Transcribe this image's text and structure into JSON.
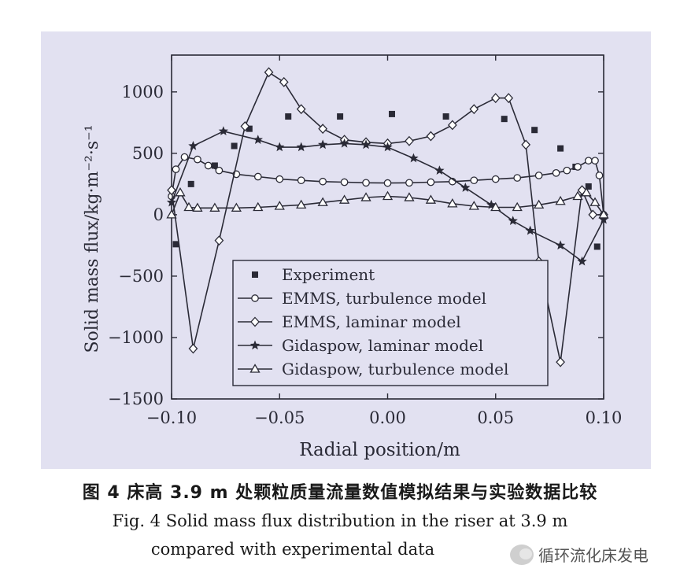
{
  "caption": {
    "cn": "图 4  床高 3.9 m 处颗粒质量流量数值模拟结果与实验数据比较",
    "en_line1": "Fig. 4  Solid mass flux distribution in the riser at 3.9 m",
    "en_line2": "compared with experimental data"
  },
  "watermark": {
    "text": "循环流化床发电",
    "icon": "wechat-icon"
  },
  "chart_data": {
    "type": "line",
    "title": "",
    "xlabel": "Radial position/m",
    "ylabel": "Solid mass flux/kg·m⁻²·s⁻¹",
    "xlim": [
      -0.1,
      0.1
    ],
    "ylim": [
      -1500,
      1300
    ],
    "xticks": [
      -0.1,
      -0.05,
      0.0,
      0.05,
      0.1
    ],
    "xtick_labels": [
      "−0.10",
      "−0.05",
      "0.00",
      "0.05",
      "0.10"
    ],
    "yticks": [
      -1500,
      -1000,
      -500,
      0,
      500,
      1000
    ],
    "ytick_labels": [
      "−1500",
      "−1000",
      "−500",
      "0",
      "500",
      "1000"
    ],
    "grid": false,
    "legend_position": "bottom-center",
    "series": [
      {
        "name": "Experiment",
        "marker": "square",
        "line": false,
        "x": [
          -0.098,
          -0.091,
          -0.08,
          -0.071,
          -0.064,
          -0.046,
          -0.022,
          0.002,
          0.027,
          0.054,
          0.068,
          0.08,
          0.087,
          0.093,
          0.097
        ],
        "y": [
          -240,
          250,
          400,
          560,
          700,
          800,
          800,
          820,
          800,
          780,
          690,
          540,
          390,
          230,
          -260
        ]
      },
      {
        "name": "EMMS, turbulence model",
        "marker": "circle-open",
        "line": true,
        "x": [
          -0.1,
          -0.098,
          -0.094,
          -0.088,
          -0.083,
          -0.078,
          -0.07,
          -0.06,
          -0.05,
          -0.04,
          -0.03,
          -0.02,
          -0.01,
          0.0,
          0.01,
          0.02,
          0.03,
          0.04,
          0.05,
          0.06,
          0.07,
          0.078,
          0.083,
          0.088,
          0.093,
          0.096,
          0.098,
          0.1
        ],
        "y": [
          150,
          370,
          470,
          450,
          400,
          360,
          330,
          310,
          290,
          280,
          270,
          265,
          260,
          258,
          260,
          265,
          270,
          280,
          290,
          300,
          320,
          340,
          360,
          390,
          440,
          440,
          320,
          0
        ]
      },
      {
        "name": "EMMS, laminar model",
        "marker": "diamond-open",
        "line": true,
        "x": [
          -0.1,
          -0.09,
          -0.078,
          -0.066,
          -0.055,
          -0.048,
          -0.04,
          -0.03,
          -0.02,
          -0.01,
          0.0,
          0.01,
          0.02,
          0.03,
          0.04,
          0.05,
          0.056,
          0.064,
          0.07,
          0.08,
          0.09,
          0.095,
          0.1
        ],
        "y": [
          200,
          -1090,
          -210,
          720,
          1160,
          1080,
          860,
          700,
          610,
          590,
          580,
          600,
          640,
          730,
          860,
          950,
          950,
          570,
          -380,
          -1200,
          200,
          0,
          0
        ]
      },
      {
        "name": "Gidaspow, laminar model",
        "marker": "star",
        "line": true,
        "x": [
          -0.1,
          -0.09,
          -0.076,
          -0.06,
          -0.05,
          -0.04,
          -0.03,
          -0.02,
          -0.01,
          0.0,
          0.012,
          0.024,
          0.036,
          0.048,
          0.058,
          0.066,
          0.08,
          0.09,
          0.1
        ],
        "y": [
          100,
          560,
          680,
          610,
          550,
          550,
          570,
          580,
          570,
          550,
          460,
          360,
          220,
          80,
          -50,
          -130,
          -250,
          -380,
          -40
        ]
      },
      {
        "name": "Gidaspow, turbulence model",
        "marker": "triangle-open",
        "line": true,
        "x": [
          -0.1,
          -0.096,
          -0.092,
          -0.088,
          -0.08,
          -0.07,
          -0.06,
          -0.05,
          -0.04,
          -0.03,
          -0.02,
          -0.01,
          0.0,
          0.01,
          0.02,
          0.03,
          0.04,
          0.05,
          0.06,
          0.07,
          0.08,
          0.088,
          0.092,
          0.096,
          0.1
        ],
        "y": [
          0,
          180,
          60,
          55,
          55,
          55,
          60,
          70,
          80,
          100,
          120,
          140,
          150,
          140,
          120,
          90,
          70,
          60,
          60,
          80,
          110,
          150,
          180,
          100,
          0
        ]
      }
    ]
  }
}
